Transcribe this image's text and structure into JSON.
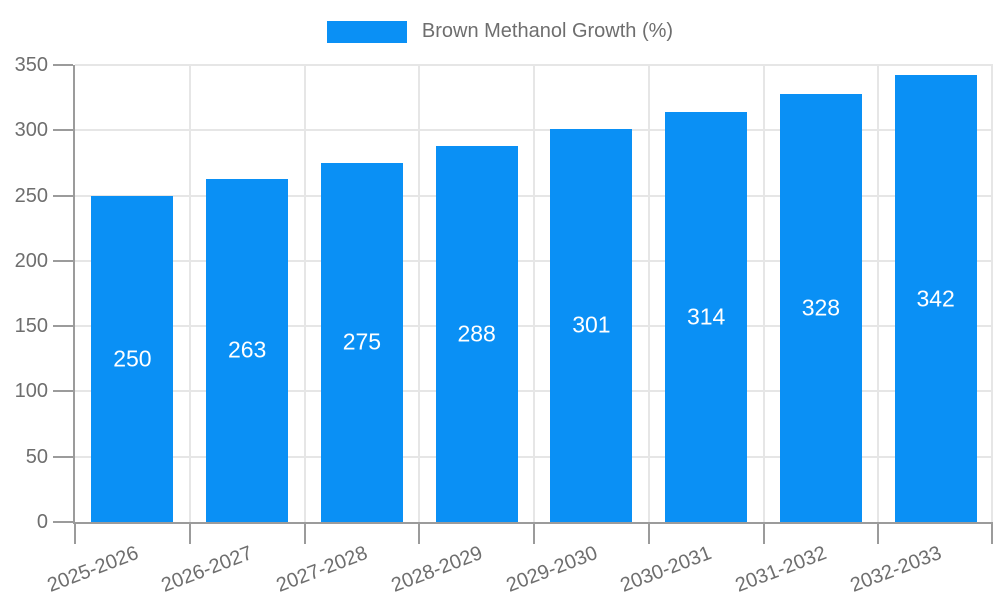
{
  "page": {
    "background": "#ffffff"
  },
  "colors": {
    "bar": "#0a90f5",
    "axis": "#9b9b9b",
    "grid": "#e6e6e6",
    "tick_text": "#6e6e6e",
    "bar_label": "#ffffff",
    "background": "#ffffff"
  },
  "chart_data": {
    "type": "bar",
    "title": "",
    "categories": [
      "2025-2026",
      "2026-2027",
      "2027-2028",
      "2028-2029",
      "2029-2030",
      "2030-2031",
      "2031-2032",
      "2032-2033"
    ],
    "series": [
      {
        "name": "Brown Methanol Growth (%)",
        "values": [
          250,
          263,
          275,
          288,
          301,
          314,
          328,
          342
        ]
      }
    ],
    "bar_value_labels": [
      250,
      263,
      275,
      288,
      301,
      314,
      328,
      342
    ],
    "xlabel": "",
    "ylabel": "",
    "ylim": [
      0,
      350
    ],
    "yticks": [
      0,
      50,
      100,
      150,
      200,
      250,
      300,
      350
    ],
    "grid": true,
    "legend_position": "top",
    "x_tick_label_rotation_deg": -21
  }
}
